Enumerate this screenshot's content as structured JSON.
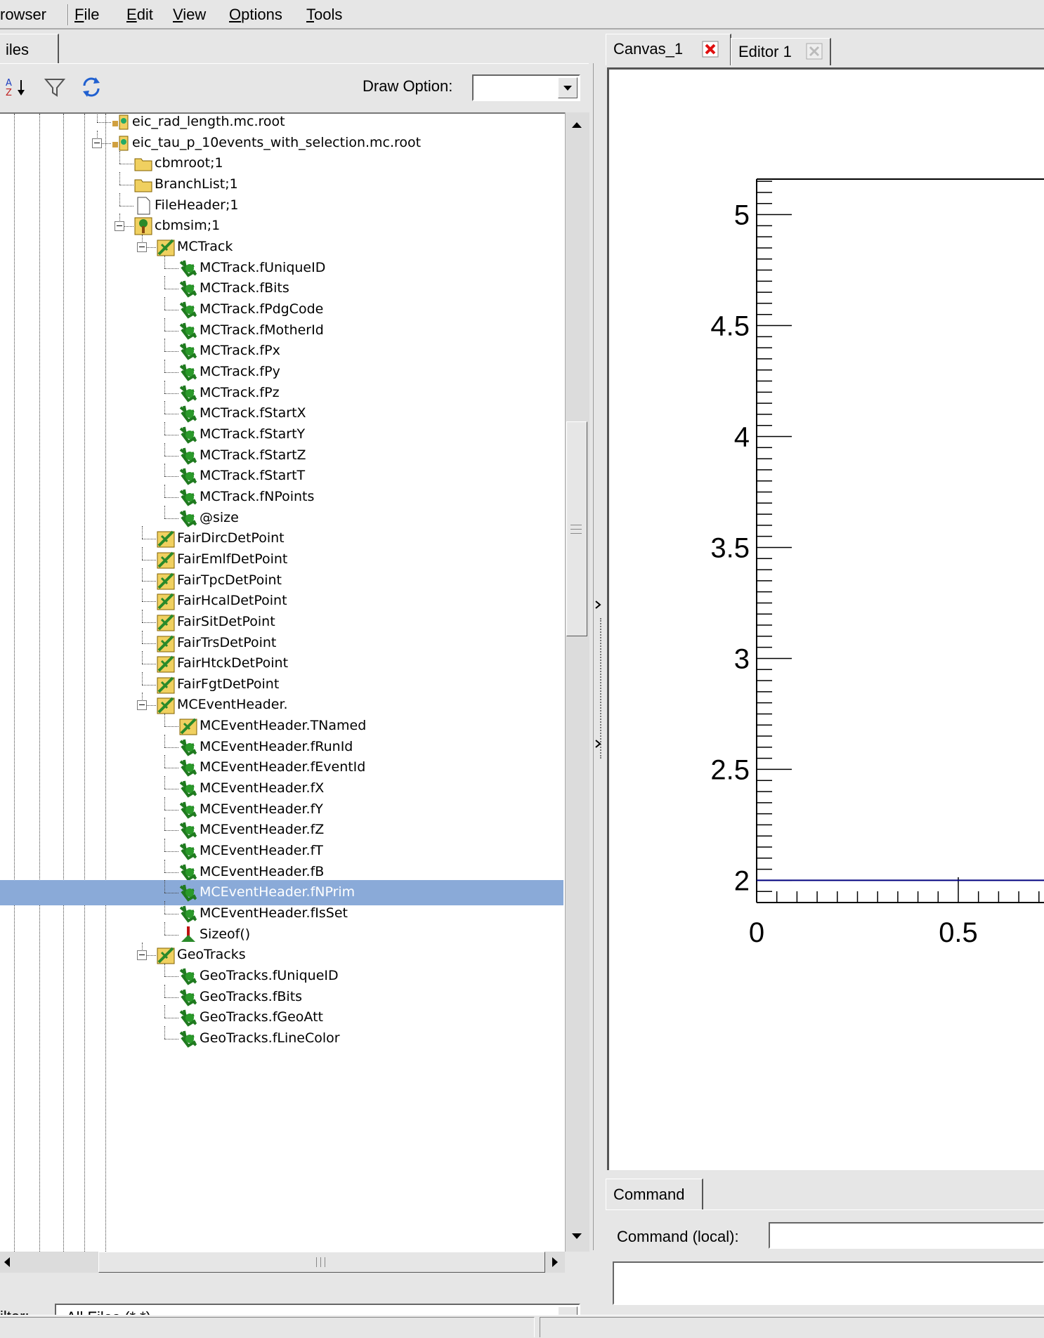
{
  "menubar": {
    "app": "rowser",
    "items": [
      {
        "label": "File",
        "u": "F"
      },
      {
        "label": "Edit",
        "u": "E"
      },
      {
        "label": "View",
        "u": "V"
      },
      {
        "label": "Options",
        "u": "O"
      },
      {
        "label": "Tools",
        "u": "T"
      }
    ]
  },
  "left_tab": "iles",
  "toolbar": {
    "draw_option_label": "Draw Option:",
    "draw_option_value": ""
  },
  "tree": {
    "rows": [
      {
        "label": "eic_rad_length.mc.root",
        "icon": "root-file-icon"
      },
      {
        "label": "eic_tau_p_10events_with_selection.mc.root",
        "icon": "root-file-icon"
      },
      {
        "label": "cbmroot;1",
        "icon": "folder-icon"
      },
      {
        "label": "BranchList;1",
        "icon": "folder-icon"
      },
      {
        "label": "FileHeader;1",
        "icon": "document-icon"
      },
      {
        "label": "cbmsim;1",
        "icon": "tree-icon"
      },
      {
        "label": "MCTrack",
        "icon": "branch-icon"
      },
      {
        "label": "MCTrack.fUniqueID",
        "icon": "leaf-icon"
      },
      {
        "label": "MCTrack.fBits",
        "icon": "leaf-icon"
      },
      {
        "label": "MCTrack.fPdgCode",
        "icon": "leaf-icon"
      },
      {
        "label": "MCTrack.fMotherId",
        "icon": "leaf-icon"
      },
      {
        "label": "MCTrack.fPx",
        "icon": "leaf-icon"
      },
      {
        "label": "MCTrack.fPy",
        "icon": "leaf-icon"
      },
      {
        "label": "MCTrack.fPz",
        "icon": "leaf-icon"
      },
      {
        "label": "MCTrack.fStartX",
        "icon": "leaf-icon"
      },
      {
        "label": "MCTrack.fStartY",
        "icon": "leaf-icon"
      },
      {
        "label": "MCTrack.fStartZ",
        "icon": "leaf-icon"
      },
      {
        "label": "MCTrack.fStartT",
        "icon": "leaf-icon"
      },
      {
        "label": "MCTrack.fNPoints",
        "icon": "leaf-icon"
      },
      {
        "label": "@size",
        "icon": "leaf-icon"
      },
      {
        "label": "FairDircDetPoint",
        "icon": "branch-icon"
      },
      {
        "label": "FairEmlfDetPoint",
        "icon": "branch-icon"
      },
      {
        "label": "FairTpcDetPoint",
        "icon": "branch-icon"
      },
      {
        "label": "FairHcalDetPoint",
        "icon": "branch-icon"
      },
      {
        "label": "FairSitDetPoint",
        "icon": "branch-icon"
      },
      {
        "label": "FairTrsDetPoint",
        "icon": "branch-icon"
      },
      {
        "label": "FairHtckDetPoint",
        "icon": "branch-icon"
      },
      {
        "label": "FairFgtDetPoint",
        "icon": "branch-icon"
      },
      {
        "label": "MCEventHeader.",
        "icon": "branch-icon"
      },
      {
        "label": "MCEventHeader.TNamed",
        "icon": "branch-icon"
      },
      {
        "label": "MCEventHeader.fRunId",
        "icon": "leaf-icon"
      },
      {
        "label": "MCEventHeader.fEventId",
        "icon": "leaf-icon"
      },
      {
        "label": "MCEventHeader.fX",
        "icon": "leaf-icon"
      },
      {
        "label": "MCEventHeader.fY",
        "icon": "leaf-icon"
      },
      {
        "label": "MCEventHeader.fZ",
        "icon": "leaf-icon"
      },
      {
        "label": "MCEventHeader.fT",
        "icon": "leaf-icon"
      },
      {
        "label": "MCEventHeader.fB",
        "icon": "leaf-icon"
      },
      {
        "label": "MCEventHeader.fNPrim",
        "icon": "leaf-icon"
      },
      {
        "label": "MCEventHeader.fIsSet",
        "icon": "leaf-icon"
      },
      {
        "label": "Sizeof()",
        "icon": "function-icon"
      },
      {
        "label": "GeoTracks",
        "icon": "branch-icon"
      },
      {
        "label": "GeoTracks.fUniqueID",
        "icon": "leaf-icon"
      },
      {
        "label": "GeoTracks.fBits",
        "icon": "leaf-icon"
      },
      {
        "label": "GeoTracks.fGeoAtt",
        "icon": "leaf-icon"
      },
      {
        "label": "GeoTracks.fLineColor",
        "icon": "leaf-icon"
      }
    ],
    "selected": "MCEventHeader.fNPrim"
  },
  "filter": {
    "label": "ilter:",
    "value": "All Files (*.*)"
  },
  "right_tabs": [
    {
      "label": "Canvas_1"
    },
    {
      "label": "Editor 1"
    }
  ],
  "plot": {
    "y_ticks": [
      "5",
      "4.5",
      "4",
      "3.5",
      "3",
      "2.5",
      "2"
    ],
    "x_ticks": [
      "0",
      "0.5"
    ],
    "line_color": "#00007f"
  },
  "command": {
    "tab_label": "Command",
    "local_label": "Command (local):",
    "value": ""
  },
  "colors": {
    "selection": "#8aaad8",
    "close_red": "#e01010"
  }
}
